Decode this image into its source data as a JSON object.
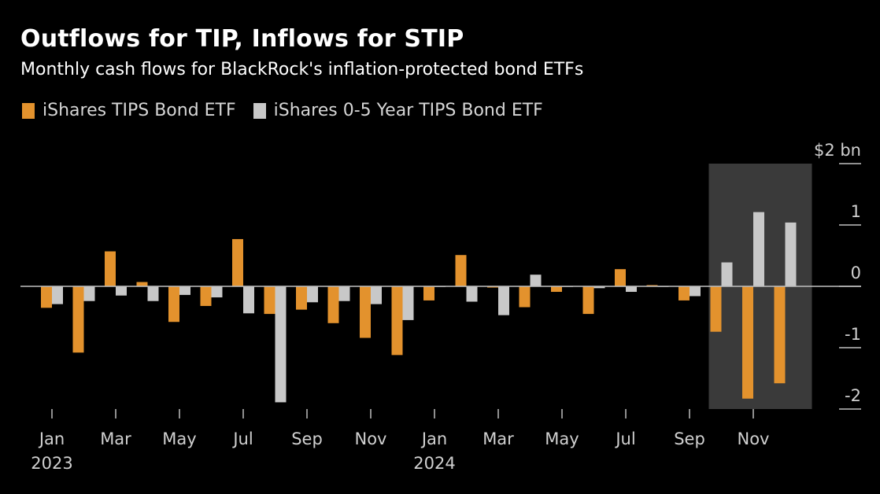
{
  "title": "Outflows for TIP, Inflows for STIP",
  "subtitle": "Monthly cash flows for BlackRock's inflation-protected bond ETFs",
  "colors": {
    "tip": "#e3922d",
    "stip": "#c8c8c8",
    "highlight": "#3a3a3a",
    "axis": "#bfbfbf",
    "background": "#000000"
  },
  "chart_data": {
    "type": "bar",
    "x": [
      "Jan 2023",
      "Feb 2023",
      "Mar 2023",
      "Apr 2023",
      "May 2023",
      "Jun 2023",
      "Jul 2023",
      "Aug 2023",
      "Sep 2023",
      "Oct 2023",
      "Nov 2023",
      "Dec 2023",
      "Jan 2024",
      "Feb 2024",
      "Mar 2024",
      "Apr 2024",
      "May 2024",
      "Jun 2024",
      "Jul 2024",
      "Aug 2024",
      "Sep 2024",
      "Oct 2024",
      "Nov 2024",
      "Dec 2024"
    ],
    "x_tick_labels": [
      {
        "month": "Jan",
        "year": "2023"
      },
      {
        "month": "Mar",
        "year": ""
      },
      {
        "month": "May",
        "year": ""
      },
      {
        "month": "Jul",
        "year": ""
      },
      {
        "month": "Sep",
        "year": ""
      },
      {
        "month": "Nov",
        "year": ""
      },
      {
        "month": "Jan",
        "year": "2024"
      },
      {
        "month": "Mar",
        "year": ""
      },
      {
        "month": "May",
        "year": ""
      },
      {
        "month": "Jul",
        "year": ""
      },
      {
        "month": "Sep",
        "year": ""
      },
      {
        "month": "Nov",
        "year": ""
      }
    ],
    "series": [
      {
        "name": "iShares TIPS Bond ETF",
        "color": "#e3922d",
        "values": [
          -0.35,
          -1.08,
          0.57,
          0.07,
          -0.58,
          -0.32,
          0.77,
          -0.45,
          -0.38,
          -0.6,
          -0.84,
          -1.12,
          -0.23,
          0.51,
          -0.02,
          -0.34,
          -0.09,
          -0.45,
          0.28,
          0.02,
          -0.23,
          -0.74,
          -1.83,
          -1.58
        ]
      },
      {
        "name": "iShares 0-5 Year TIPS Bond ETF",
        "color": "#c8c8c8",
        "values": [
          -0.29,
          -0.24,
          -0.15,
          -0.24,
          -0.14,
          -0.18,
          -0.44,
          -1.89,
          -0.26,
          -0.24,
          -0.29,
          -0.55,
          0.0,
          -0.25,
          -0.47,
          0.19,
          -0.01,
          -0.03,
          -0.09,
          -0.01,
          -0.16,
          0.39,
          1.21,
          1.04
        ]
      }
    ],
    "y_tick_labels": [
      "$2 bn",
      "1",
      "0",
      "-1",
      "-2"
    ],
    "y_ticks": [
      2,
      1,
      0,
      -1,
      -2
    ],
    "ylim": [
      -2.3,
      2.4
    ],
    "highlight_range": [
      "Oct 2024",
      "Dec 2024"
    ],
    "grid": false,
    "legend_position": "top-left"
  }
}
